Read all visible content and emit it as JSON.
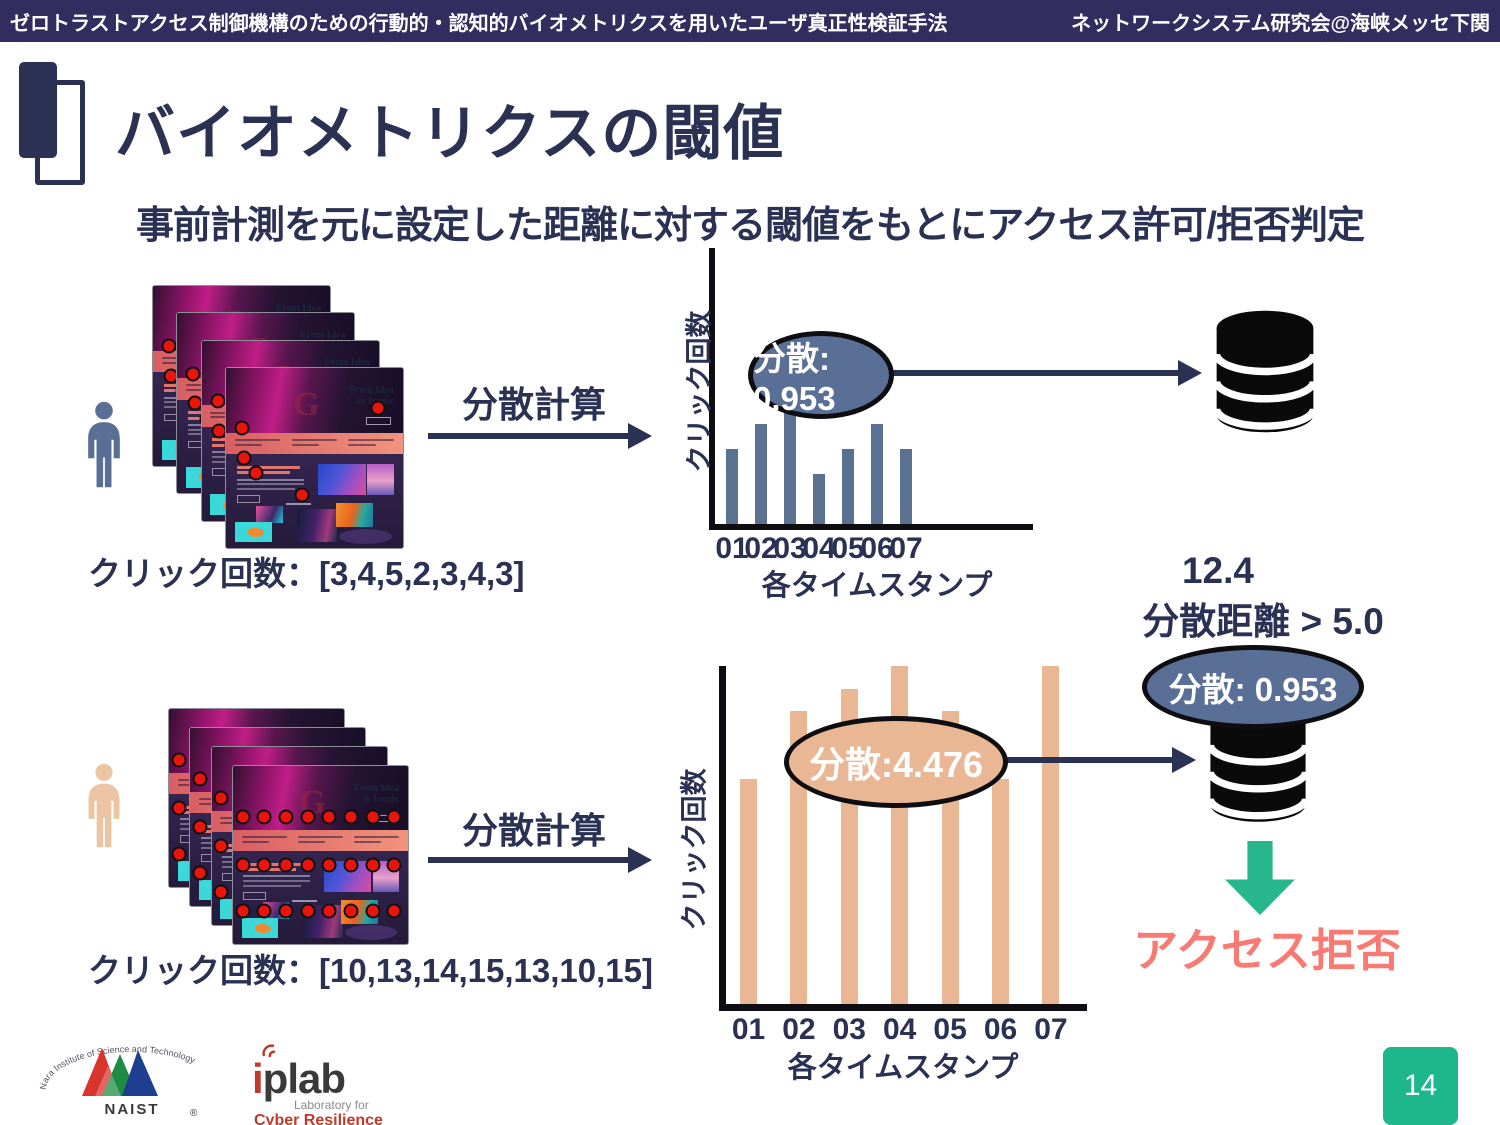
{
  "header": {
    "left": "ゼロトラストアクセス制御機構のための行動的・認知的バイオメトリクスを用いたユーザ真正性検証手法",
    "right": "ネットワークシステム研究会@海峡メッセ下関"
  },
  "title": "バイオメトリクスの閾値",
  "subtitle": "事前計測を元に設定した距離に対する閾値をもとにアクセス許可/拒否判定",
  "thumb": {
    "hero_line1": "From Idea",
    "hero_line2": "to Iconic"
  },
  "genuine": {
    "caption": "クリック回数：[3,4,5,2,3,4,3]",
    "arrow_label": "分散計算",
    "variance_badge": "分散: 0.953"
  },
  "impostor": {
    "caption": "クリック回数：[10,13,14,15,13,10,15]",
    "arrow_label": "分散計算",
    "variance_badge": "分散:4.476"
  },
  "decision": {
    "distance_value": "12.4",
    "distance_rule": "分散距離 > 5.0",
    "stored_variance_badge": "分散: 0.953",
    "result": "アクセス拒否"
  },
  "chart_data": [
    {
      "type": "bar",
      "categories": [
        "01",
        "02",
        "03",
        "04",
        "05",
        "06",
        "07"
      ],
      "values": [
        3,
        4,
        5,
        2,
        3,
        4,
        3
      ],
      "xlabel": "各タイムスタンプ",
      "ylabel": "クリック回数",
      "annotation": "分散: 0.953",
      "bar_color": "#5b7191",
      "ylim": [
        0,
        5
      ],
      "grid": false,
      "title": ""
    },
    {
      "type": "bar",
      "categories": [
        "01",
        "02",
        "03",
        "04",
        "05",
        "06",
        "07"
      ],
      "values": [
        10,
        13,
        14,
        15,
        13,
        10,
        15
      ],
      "xlabel": "各タイムスタンプ",
      "ylabel": "クリック回数",
      "annotation": "分散:4.476",
      "bar_color": "#eab795",
      "ylim": [
        0,
        15
      ],
      "grid": false,
      "title": ""
    }
  ],
  "footer": {
    "naist_ring_text": "Nara Institute of Science and Technology",
    "naist_name": "NAIST",
    "reg_mark": "®",
    "iplab_name_i": "i",
    "iplab_name_rest": "plab",
    "iplab_sub": "Laboratory for",
    "iplab_title": "Cyber Resilience",
    "page_number": "14"
  },
  "colors": {
    "navy": "#2b3153",
    "header_bg": "#312d5e",
    "genuine_bar": "#5b7191",
    "impostor_bar": "#eab795",
    "genuine_badge_bg": "#5a6f96",
    "impostor_badge_bg": "#eab795",
    "stored_badge_bg": "#5a6f96",
    "green_arrow": "#28b78c",
    "result_red": "#f97a72",
    "page_box": "#1db78b",
    "click_marker": "#e8150d",
    "db_icon": "#0a0a0a"
  }
}
